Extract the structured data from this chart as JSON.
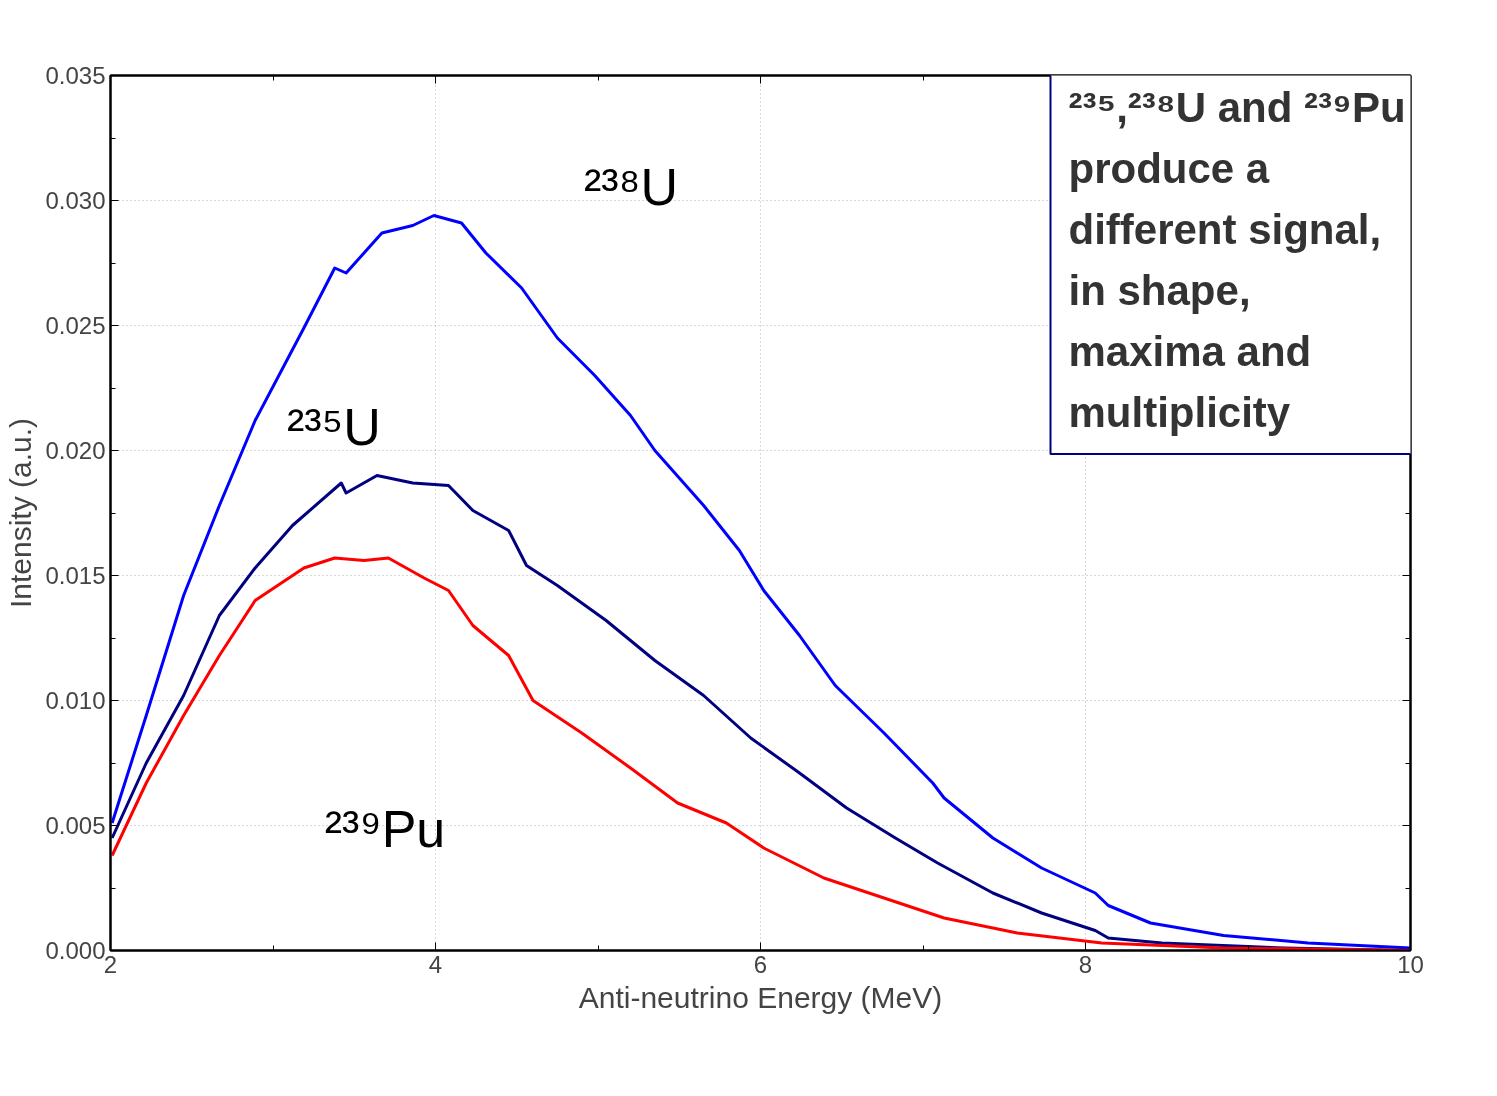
{
  "chart_data": {
    "type": "line",
    "xlabel": "Anti-neutrino Energy (MeV)",
    "ylabel": "Intensity (a.u.)",
    "xlim": [
      2,
      10
    ],
    "ylim": [
      0,
      0.035
    ],
    "xticks": [
      2,
      4,
      6,
      8,
      10
    ],
    "yticks": [
      {
        "value": 0,
        "label": "0.000"
      },
      {
        "value": 0.005,
        "label": "0.005"
      },
      {
        "value": 0.01,
        "label": "0.010"
      },
      {
        "value": 0.015,
        "label": "0.015"
      },
      {
        "value": 0.02,
        "label": "0.020"
      },
      {
        "value": 0.025,
        "label": "0.025"
      },
      {
        "value": 0.03,
        "label": "0.030"
      },
      {
        "value": 0.035,
        "label": "0.035"
      }
    ],
    "grid": true,
    "line_style": "solid",
    "series": [
      {
        "name": "²³⁸U",
        "color": "#0000ff",
        "x": [
          2.01,
          2.22,
          2.45,
          2.67,
          2.89,
          3.19,
          3.38,
          3.45,
          3.67,
          3.86,
          3.99,
          4.16,
          4.31,
          4.53,
          4.75,
          4.98,
          5.2,
          5.35,
          5.65,
          5.87,
          6.02,
          6.24,
          6.46,
          6.76,
          7.06,
          7.13,
          7.43,
          7.73,
          8.06,
          8.14,
          8.4,
          8.85,
          9.37,
          10
        ],
        "values": [
          0.0051,
          0.0094,
          0.0142,
          0.0178,
          0.0212,
          0.0249,
          0.0273,
          0.0271,
          0.0287,
          0.029,
          0.0294,
          0.0291,
          0.0279,
          0.0265,
          0.0245,
          0.023,
          0.0214,
          0.02,
          0.0178,
          0.016,
          0.0144,
          0.0126,
          0.0106,
          0.0087,
          0.0067,
          0.0061,
          0.0045,
          0.0033,
          0.0023,
          0.0018,
          0.0011,
          0.0006,
          0.0003,
          0.0001
        ]
      },
      {
        "name": "²³⁵U",
        "color": "#000080",
        "x": [
          2.01,
          2.22,
          2.45,
          2.67,
          2.89,
          3.12,
          3.42,
          3.45,
          3.64,
          3.86,
          4.08,
          4.23,
          4.45,
          4.56,
          4.75,
          5.05,
          5.35,
          5.65,
          5.94,
          6.24,
          6.53,
          6.83,
          7.09,
          7.43,
          7.73,
          8.06,
          8.14,
          8.47,
          9.22,
          10
        ],
        "values": [
          0.0045,
          0.0075,
          0.0102,
          0.0134,
          0.0153,
          0.017,
          0.0187,
          0.0183,
          0.019,
          0.0187,
          0.0186,
          0.0176,
          0.0168,
          0.0154,
          0.0146,
          0.0132,
          0.0116,
          0.0102,
          0.0085,
          0.0071,
          0.0057,
          0.0045,
          0.0035,
          0.0023,
          0.0015,
          0.0008,
          0.0005,
          0.0003,
          0.0001,
          0
        ]
      },
      {
        "name": "²³⁹Pu",
        "color": "#ff0000",
        "x": [
          2.01,
          2.22,
          2.45,
          2.67,
          2.89,
          3.19,
          3.38,
          3.56,
          3.71,
          3.93,
          4.08,
          4.23,
          4.45,
          4.6,
          4.9,
          5.2,
          5.49,
          5.79,
          6.02,
          6.39,
          6.76,
          7.13,
          7.58,
          8.1,
          8.85,
          10
        ],
        "values": [
          0.0038,
          0.0067,
          0.0094,
          0.0118,
          0.014,
          0.0153,
          0.0157,
          0.0156,
          0.0157,
          0.0149,
          0.0144,
          0.013,
          0.0118,
          0.01,
          0.0087,
          0.0073,
          0.0059,
          0.0051,
          0.0041,
          0.0029,
          0.0021,
          0.0013,
          0.0007,
          0.0003,
          0.0001,
          0
        ]
      }
    ],
    "annotations": [
      "²³⁵,²³⁸U and ²³⁹Pu\nproduce a\ndifferent signal,\nin shape,\nmaxima and\nmultiplicity"
    ]
  }
}
